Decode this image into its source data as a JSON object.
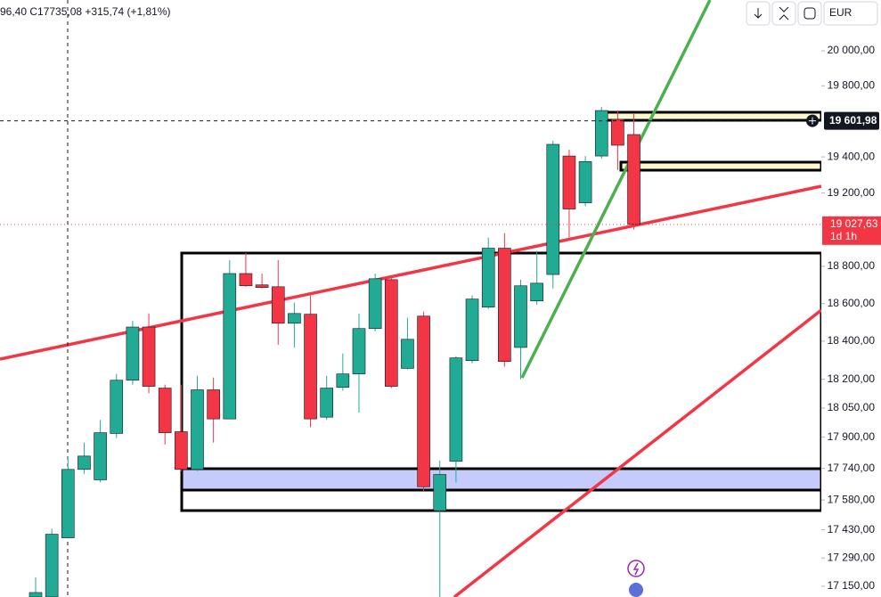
{
  "chart_data": {
    "type": "candlestick",
    "header": "96,40 C17735,08 +315,74 (+1,81%)",
    "currency": "EUR",
    "log_scale": true,
    "up_color": "#22ab94",
    "down_color": "#f23645",
    "ylim": [
      17097,
      20294
    ],
    "yticks": [
      {
        "value": 17150,
        "label": "17 150,00"
      },
      {
        "value": 17290,
        "label": "17 290,00"
      },
      {
        "value": 17430,
        "label": "17 430,00"
      },
      {
        "value": 17580,
        "label": "17 580,00"
      },
      {
        "value": 17740,
        "label": "17 740,00"
      },
      {
        "value": 17900,
        "label": "17 900,00"
      },
      {
        "value": 18050,
        "label": "18 050,00"
      },
      {
        "value": 18200,
        "label": "18 200,00"
      },
      {
        "value": 18400,
        "label": "18 400,00"
      },
      {
        "value": 18600,
        "label": "18 600,00"
      },
      {
        "value": 18800,
        "label": "18 800,00"
      },
      {
        "value": 19200,
        "label": "19 200,00"
      },
      {
        "value": 19400,
        "label": "19 400,00"
      },
      {
        "value": 19800,
        "label": "19 800,00"
      },
      {
        "value": 20000,
        "label": "20 000,00"
      }
    ],
    "crosshair": {
      "value": 19601.98,
      "label": "19 601,98"
    },
    "last_price": {
      "value": 19027.63,
      "label": "19 027,63",
      "countdown": "1d 1h"
    },
    "open": [
      17097,
      17097,
      17390,
      17735,
      17682,
      17919,
      18195,
      18475,
      18154,
      17928,
      17735,
      18145,
      17994,
      18761,
      18700,
      18690,
      18495,
      18543,
      18003,
      18158,
      18228,
      18467,
      18728,
      18257,
      18533,
      17526,
      17776,
      18298,
      18581,
      18898,
      18367,
      18614,
      18756,
      19405,
      19146,
      19405,
      19610,
      19525
    ],
    "high": [
      17194,
      17435,
      17803,
      17872,
      17989,
      18228,
      18509,
      18547,
      18172,
      18172,
      18218,
      18209,
      18834,
      18873,
      18761,
      18834,
      18605,
      18643,
      18218,
      18335,
      18547,
      18761,
      18738,
      18524,
      18557,
      17780,
      18321,
      18643,
      18956,
      18980,
      18728,
      18883,
      19490,
      19440,
      19405,
      19680,
      19660,
      19645
    ],
    "low": [
      17097,
      17097,
      17390,
      17713,
      17669,
      17895,
      18172,
      18127,
      17862,
      17726,
      17726,
      17872,
      17994,
      18690,
      18681,
      18381,
      18367,
      17951,
      17989,
      18140,
      18027,
      18452,
      18154,
      18252,
      17625,
      17097,
      17669,
      18284,
      18571,
      18266,
      18200,
      18595,
      18681,
      18956,
      19127,
      19390,
      19328,
      19000
    ],
    "close": [
      17119,
      17408,
      17735,
      17803,
      17923,
      18195,
      18475,
      18163,
      17923,
      17735,
      18145,
      17994,
      18761,
      18695,
      18686,
      18495,
      18547,
      17994,
      18154,
      18228,
      18467,
      18733,
      18163,
      18410,
      17647,
      17709,
      18312,
      18624,
      18898,
      18293,
      18695,
      18709,
      19470,
      19112,
      19374,
      19660,
      19465,
      19027.63
    ]
  }
}
